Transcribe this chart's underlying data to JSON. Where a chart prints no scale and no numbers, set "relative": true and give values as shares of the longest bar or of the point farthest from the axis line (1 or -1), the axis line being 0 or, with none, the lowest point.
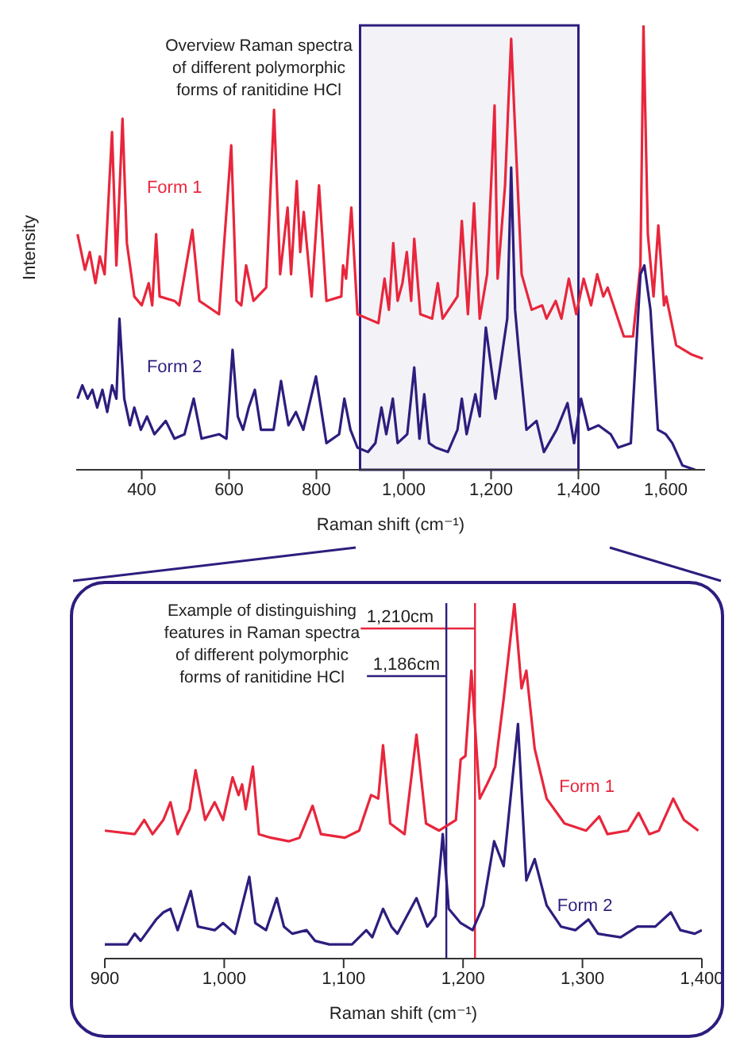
{
  "chart_data": [
    {
      "type": "line",
      "relative": true,
      "xlabel": "Raman shift (cm⁻¹)",
      "ylabel": "Intensity",
      "xlim": [
        250,
        1690
      ],
      "xticks": [
        {
          "value": 400,
          "label": "400"
        },
        {
          "value": 600,
          "label": "600"
        },
        {
          "value": 800,
          "label": "800"
        },
        {
          "value": 1000,
          "label": "1,000"
        },
        {
          "value": 1200,
          "label": "1,200"
        },
        {
          "value": 1400,
          "label": "1,400"
        },
        {
          "value": 1600,
          "label": "1,600"
        }
      ],
      "annotations": [
        "Overview Raman spectra\nof different polymorphic\nforms of ranitidine HCl"
      ],
      "bands": [
        {
          "axis": "x",
          "from": 900,
          "to": 1400,
          "color": "#2e1d7e"
        }
      ],
      "series": [
        {
          "name": "Form 1",
          "color": "#e8263c",
          "x": [
            253,
            270,
            281,
            294,
            304,
            315,
            332,
            342,
            356,
            366,
            383,
            400,
            416,
            424,
            433,
            441,
            475,
            486,
            516,
            532,
            577,
            605,
            617,
            628,
            639,
            656,
            685,
            703,
            717,
            734,
            742,
            755,
            763,
            771,
            789,
            806,
            823,
            857,
            861,
            868,
            880,
            894,
            918,
            942,
            956,
            966,
            976,
            986,
            997,
            1007,
            1017,
            1024,
            1038,
            1065,
            1078,
            1089,
            1123,
            1133,
            1147,
            1161,
            1174,
            1191,
            1208,
            1215,
            1232,
            1239,
            1246,
            1253,
            1270,
            1293,
            1317,
            1327,
            1348,
            1361,
            1378,
            1395,
            1412,
            1429,
            1443,
            1457,
            1467,
            1487,
            1504,
            1525,
            1542,
            1549,
            1559,
            1572,
            1583,
            1596,
            1601,
            1624,
            1658,
            1685
          ],
          "values": [
            0.53,
            0.45,
            0.49,
            0.42,
            0.48,
            0.44,
            0.76,
            0.46,
            0.79,
            0.51,
            0.39,
            0.37,
            0.42,
            0.37,
            0.53,
            0.39,
            0.38,
            0.37,
            0.54,
            0.38,
            0.35,
            0.73,
            0.38,
            0.37,
            0.46,
            0.38,
            0.41,
            0.81,
            0.44,
            0.59,
            0.44,
            0.65,
            0.49,
            0.58,
            0.39,
            0.64,
            0.38,
            0.39,
            0.46,
            0.43,
            0.59,
            0.35,
            0.34,
            0.33,
            0.43,
            0.36,
            0.51,
            0.38,
            0.42,
            0.49,
            0.38,
            0.52,
            0.35,
            0.34,
            0.42,
            0.34,
            0.39,
            0.56,
            0.35,
            0.6,
            0.34,
            0.44,
            0.82,
            0.43,
            0.64,
            0.81,
            0.97,
            0.81,
            0.44,
            0.36,
            0.37,
            0.34,
            0.38,
            0.34,
            0.43,
            0.35,
            0.43,
            0.37,
            0.44,
            0.39,
            0.41,
            0.35,
            0.3,
            0.3,
            0.46,
            1,
            0.53,
            0.39,
            0.55,
            0.37,
            0.39,
            0.28,
            0.26,
            0.25
          ]
        },
        {
          "name": "Form 2",
          "color": "#2e1d7e",
          "x": [
            253,
            264,
            276,
            287,
            298,
            310,
            321,
            332,
            342,
            349,
            360,
            373,
            383,
            398,
            412,
            429,
            455,
            475,
            498,
            519,
            537,
            577,
            594,
            608,
            620,
            632,
            645,
            659,
            673,
            702,
            719,
            736,
            753,
            770,
            799,
            823,
            852,
            864,
            878,
            894,
            918,
            935,
            949,
            960,
            975,
            986,
            1008,
            1024,
            1036,
            1047,
            1058,
            1073,
            1101,
            1123,
            1133,
            1144,
            1164,
            1174,
            1188,
            1210,
            1225,
            1237,
            1246,
            1255,
            1264,
            1281,
            1304,
            1321,
            1350,
            1375,
            1390,
            1406,
            1423,
            1446,
            1474,
            1491,
            1520,
            1542,
            1551,
            1565,
            1582,
            1600,
            1615,
            1638,
            1667
          ],
          "values": [
            0.16,
            0.19,
            0.16,
            0.18,
            0.14,
            0.18,
            0.13,
            0.19,
            0.16,
            0.34,
            0.16,
            0.1,
            0.14,
            0.09,
            0.12,
            0.08,
            0.11,
            0.07,
            0.08,
            0.16,
            0.07,
            0.08,
            0.07,
            0.27,
            0.12,
            0.09,
            0.14,
            0.18,
            0.09,
            0.09,
            0.2,
            0.1,
            0.13,
            0.09,
            0.21,
            0.06,
            0.08,
            0.16,
            0.09,
            0.05,
            0.04,
            0.06,
            0.14,
            0.08,
            0.16,
            0.06,
            0.08,
            0.23,
            0.07,
            0.17,
            0.06,
            0.05,
            0.04,
            0.09,
            0.16,
            0.08,
            0.17,
            0.12,
            0.32,
            0.16,
            0.26,
            0.34,
            0.68,
            0.36,
            0.26,
            0.09,
            0.11,
            0.04,
            0.09,
            0.15,
            0.06,
            0.16,
            0.09,
            0.1,
            0.08,
            0.05,
            0.06,
            0.44,
            0.46,
            0.36,
            0.09,
            0.08,
            0.06,
            0.01,
            0
          ]
        }
      ]
    },
    {
      "type": "line",
      "relative": true,
      "xlabel": "Raman shift (cm⁻¹)",
      "xlim": [
        900,
        1400
      ],
      "xticks": [
        900,
        {
          "value": 1000,
          "label": "1,000"
        },
        {
          "value": 1100,
          "label": "1,100"
        },
        {
          "value": 1200,
          "label": "1,200"
        },
        {
          "value": 1300,
          "label": "1,300"
        },
        {
          "value": 1400,
          "label": "1,400"
        }
      ],
      "annotations": [
        "Example of distinguishing\nfeatures in Raman spectra\nof different polymorphic\nforms of ranitidine HCl"
      ],
      "ref_lines": [
        {
          "axis": "x",
          "value": 1210,
          "label": "1,210cm",
          "color": "#e8263c"
        },
        {
          "axis": "x",
          "value": 1186,
          "label": "1,186cm",
          "color": "#2e1d7e"
        }
      ],
      "series": [
        {
          "name": "Form 1",
          "color": "#e8263c",
          "x": [
            900,
            925,
            933,
            940,
            949,
            955,
            961,
            971,
            976,
            984,
            992,
            999,
            1007,
            1012,
            1015,
            1018,
            1024,
            1029,
            1039,
            1054,
            1063,
            1074,
            1081,
            1101,
            1113,
            1123,
            1129,
            1133,
            1139,
            1151,
            1161,
            1169,
            1180,
            1194,
            1198,
            1202,
            1207,
            1214,
            1220,
            1227,
            1234,
            1243,
            1249,
            1253,
            1260,
            1270,
            1285,
            1303,
            1314,
            1321,
            1338,
            1347,
            1356,
            1364,
            1376,
            1385,
            1397
          ],
          "values": [
            0.36,
            0.35,
            0.39,
            0.35,
            0.39,
            0.44,
            0.35,
            0.42,
            0.53,
            0.39,
            0.44,
            0.39,
            0.51,
            0.46,
            0.49,
            0.42,
            0.54,
            0.35,
            0.34,
            0.33,
            0.34,
            0.43,
            0.35,
            0.34,
            0.36,
            0.46,
            0.45,
            0.6,
            0.38,
            0.35,
            0.63,
            0.38,
            0.36,
            0.39,
            0.56,
            0.57,
            0.81,
            0.45,
            0.49,
            0.54,
            0.73,
            1,
            0.76,
            0.81,
            0.59,
            0.45,
            0.38,
            0.36,
            0.4,
            0.35,
            0.36,
            0.41,
            0.35,
            0.36,
            0.45,
            0.39,
            0.36
          ]
        },
        {
          "name": "Form 2",
          "color": "#2e1d7e",
          "x": [
            900,
            919,
            925,
            930,
            943,
            949,
            955,
            961,
            972,
            978,
            992,
            999,
            1009,
            1021,
            1026,
            1035,
            1044,
            1050,
            1057,
            1069,
            1076,
            1088,
            1107,
            1119,
            1124,
            1133,
            1140,
            1145,
            1161,
            1170,
            1177,
            1183,
            1188,
            1198,
            1208,
            1217,
            1226,
            1234,
            1246,
            1253,
            1260,
            1270,
            1282,
            1294,
            1305,
            1313,
            1332,
            1346,
            1361,
            1374,
            1382,
            1394,
            1400
          ],
          "values": [
            0.04,
            0.04,
            0.07,
            0.05,
            0.11,
            0.13,
            0.14,
            0.08,
            0.19,
            0.09,
            0.08,
            0.1,
            0.07,
            0.23,
            0.1,
            0.08,
            0.17,
            0.09,
            0.07,
            0.08,
            0.05,
            0.04,
            0.04,
            0.08,
            0.06,
            0.14,
            0.09,
            0.07,
            0.17,
            0.09,
            0.12,
            0.35,
            0.14,
            0.1,
            0.08,
            0.15,
            0.33,
            0.26,
            0.66,
            0.22,
            0.28,
            0.15,
            0.09,
            0.08,
            0.11,
            0.07,
            0.06,
            0.09,
            0.09,
            0.13,
            0.08,
            0.07,
            0.08
          ]
        }
      ]
    }
  ]
}
